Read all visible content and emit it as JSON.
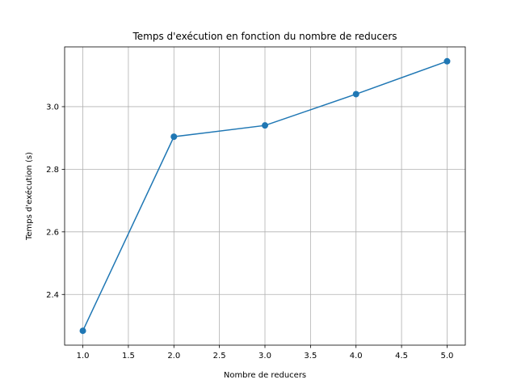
{
  "chart_data": {
    "type": "line",
    "title": "Temps d'exécution en fonction du nombre de reducers",
    "xlabel": "Nombre de reducers",
    "ylabel": "Temps d'exécution (s)",
    "xlim": [
      0.8,
      5.2
    ],
    "ylim": [
      2.238,
      3.191
    ],
    "xticks": [
      "1.0",
      "1.5",
      "2.0",
      "2.5",
      "3.0",
      "3.5",
      "4.0",
      "4.5",
      "5.0"
    ],
    "yticks": [
      "2.4",
      "2.6",
      "2.8",
      "3.0"
    ],
    "grid": true,
    "series": [
      {
        "x": [
          1,
          2,
          3,
          4,
          5
        ],
        "y": [
          2.284,
          2.904,
          2.94,
          3.04,
          3.145
        ],
        "color": "#1f77b4",
        "marker": "circle"
      }
    ]
  }
}
